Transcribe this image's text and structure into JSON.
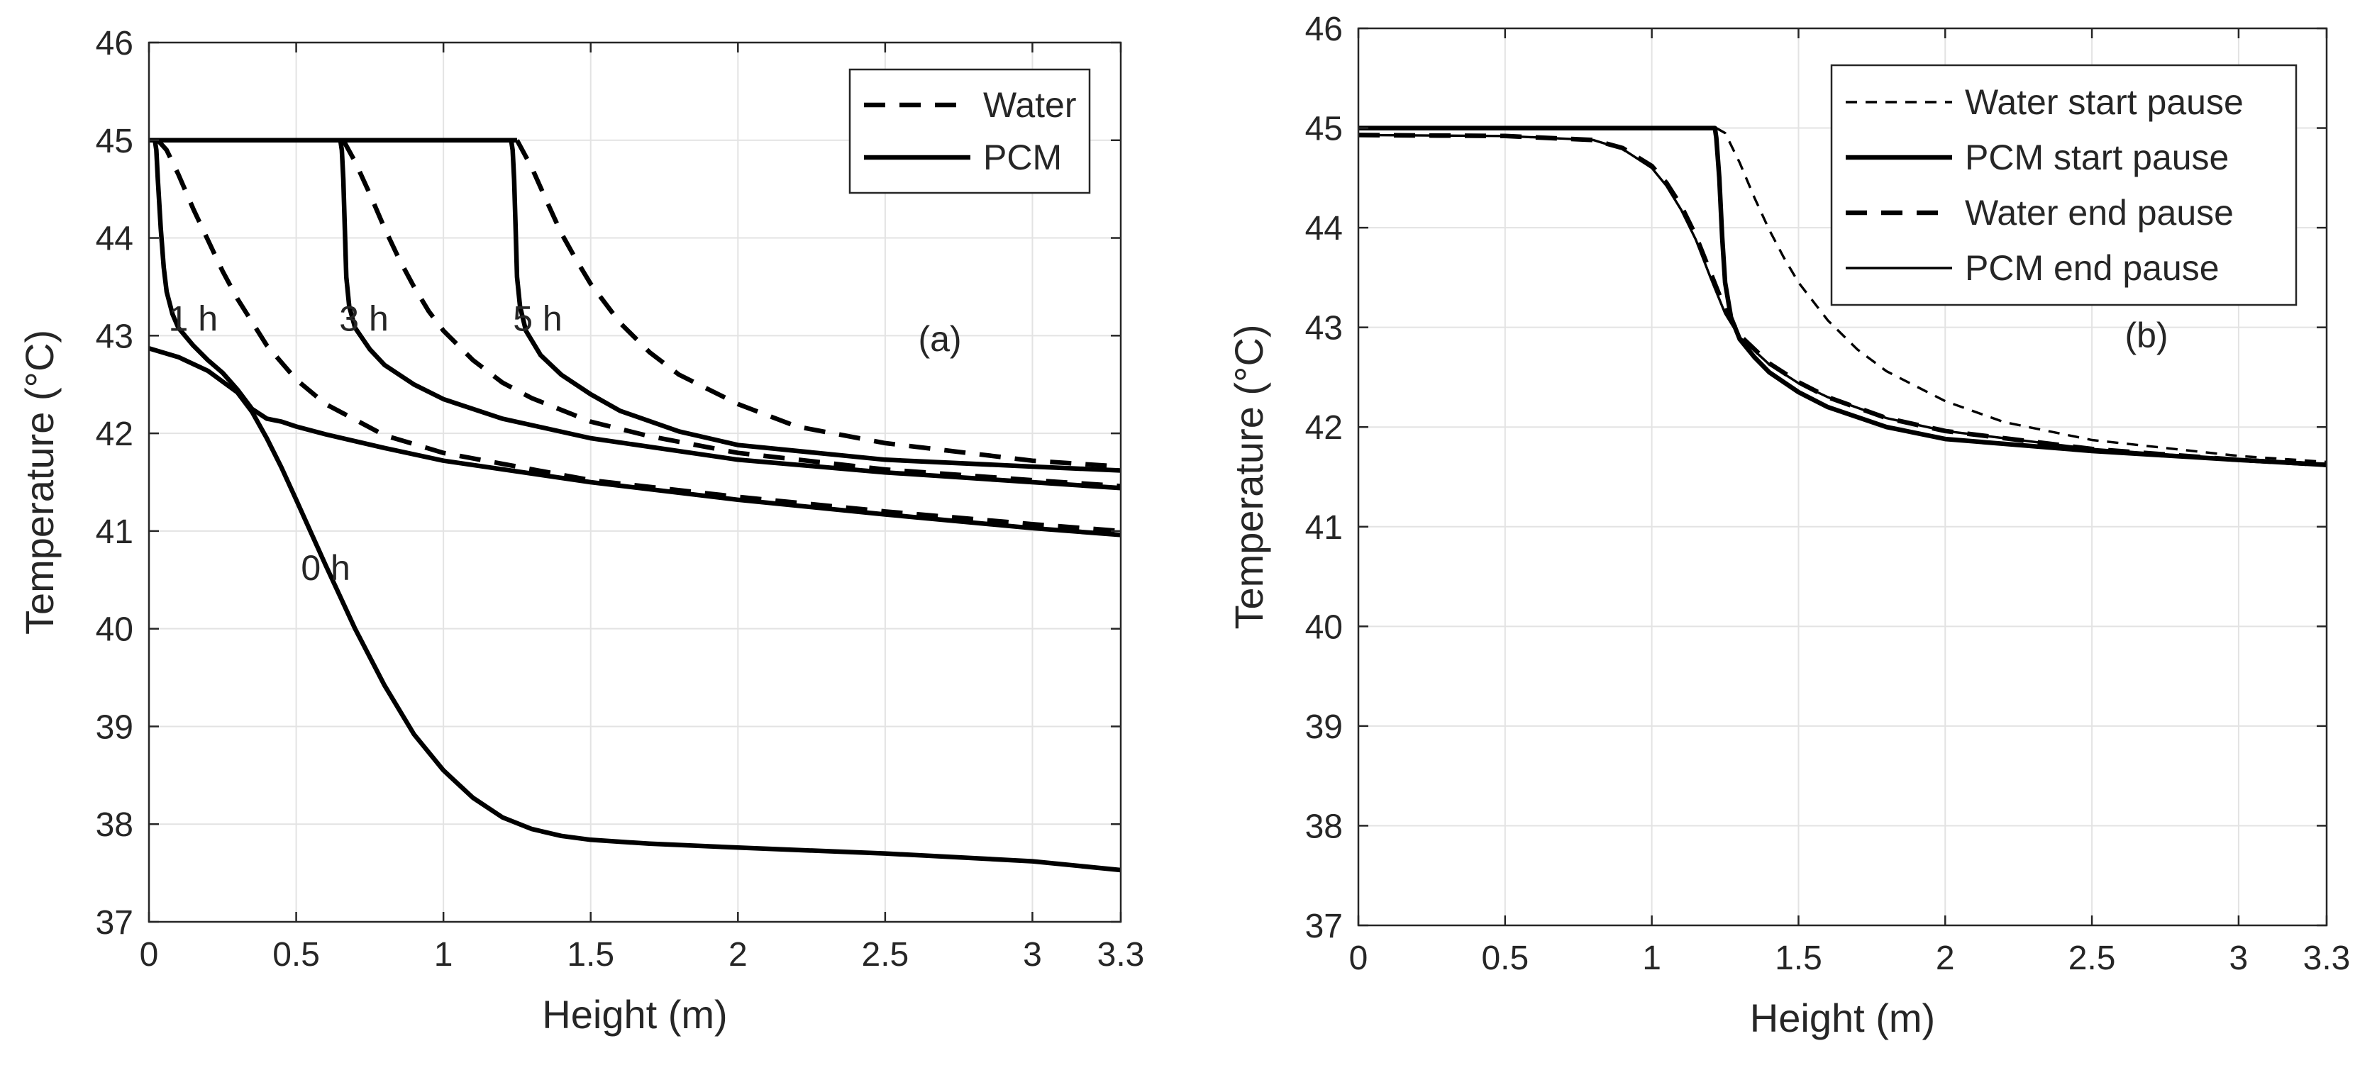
{
  "chart_data": [
    {
      "id": "a",
      "type": "line",
      "panel_label": "(a)",
      "xlabel": "Height (m)",
      "ylabel": "Temperature (°C)",
      "xlim": [
        0,
        3.3
      ],
      "ylim": [
        37,
        46
      ],
      "xticks": [
        0,
        0.5,
        1,
        1.5,
        2,
        2.5,
        3,
        3.3
      ],
      "xtick_labels": [
        "0",
        "0.5",
        "1",
        "1.5",
        "2",
        "2.5",
        "3",
        "3.3"
      ],
      "yticks": [
        37,
        38,
        39,
        40,
        41,
        42,
        43,
        44,
        45,
        46
      ],
      "ytick_labels": [
        "37",
        "38",
        "39",
        "40",
        "41",
        "42",
        "43",
        "44",
        "45",
        "46"
      ],
      "grid": true,
      "legend_position": "top-right",
      "legend": [
        {
          "label": "Water",
          "style": "dashed",
          "weight": "thick"
        },
        {
          "label": "PCM",
          "style": "solid",
          "weight": "thick"
        }
      ],
      "annotations": [
        {
          "text": "0 h",
          "x": 0.6,
          "y": 40.5
        },
        {
          "text": "1 h",
          "x": 0.15,
          "y": 43.05
        },
        {
          "text": "3 h",
          "x": 0.73,
          "y": 43.05
        },
        {
          "text": "5 h",
          "x": 1.32,
          "y": 43.05
        }
      ],
      "series": [
        {
          "name": "PCM 0 h",
          "style": "solid",
          "weight": "thick",
          "x": [
            0,
            0.1,
            0.2,
            0.3,
            0.35,
            0.4,
            0.45,
            0.5,
            0.6,
            0.7,
            0.8,
            0.9,
            1.0,
            1.1,
            1.2,
            1.3,
            1.4,
            1.5,
            1.7,
            2.0,
            2.5,
            3.0,
            3.3
          ],
          "y": [
            42.87,
            42.78,
            42.64,
            42.42,
            42.22,
            41.95,
            41.65,
            41.32,
            40.65,
            40.0,
            39.42,
            38.92,
            38.55,
            38.27,
            38.07,
            37.95,
            37.88,
            37.84,
            37.8,
            37.76,
            37.7,
            37.62,
            37.53
          ]
        },
        {
          "name": "Water 1 h",
          "style": "dashed",
          "weight": "thick",
          "x": [
            0.03,
            0.06,
            0.1,
            0.15,
            0.2,
            0.25,
            0.3,
            0.4,
            0.5,
            0.6,
            0.8,
            1.0,
            1.5,
            2.0,
            2.5,
            3.0,
            3.3
          ],
          "y": [
            45.0,
            44.9,
            44.65,
            44.3,
            43.98,
            43.66,
            43.38,
            42.9,
            42.55,
            42.3,
            41.98,
            41.8,
            41.52,
            41.35,
            41.2,
            41.07,
            41.0
          ]
        },
        {
          "name": "PCM 1 h",
          "style": "solid",
          "weight": "thick",
          "x": [
            0.02,
            0.025,
            0.03,
            0.04,
            0.05,
            0.06,
            0.08,
            0.1,
            0.15,
            0.2,
            0.25,
            0.3,
            0.35,
            0.4,
            0.45,
            0.5,
            0.6,
            0.8,
            1.0,
            1.5,
            2.0,
            2.5,
            3.0,
            3.3
          ],
          "y": [
            45.0,
            44.9,
            44.6,
            44.1,
            43.7,
            43.45,
            43.22,
            43.08,
            42.9,
            42.75,
            42.62,
            42.45,
            42.25,
            42.15,
            42.12,
            42.07,
            41.99,
            41.85,
            41.72,
            41.5,
            41.32,
            41.17,
            41.03,
            40.96
          ]
        },
        {
          "name": "Water 3 h",
          "style": "dashed",
          "weight": "thick",
          "x": [
            0.66,
            0.7,
            0.75,
            0.8,
            0.85,
            0.9,
            0.95,
            1.0,
            1.1,
            1.2,
            1.3,
            1.5,
            1.7,
            2.0,
            2.5,
            3.0,
            3.3
          ],
          "y": [
            45.0,
            44.78,
            44.45,
            44.1,
            43.78,
            43.5,
            43.25,
            43.05,
            42.75,
            42.52,
            42.36,
            42.12,
            41.97,
            41.8,
            41.63,
            41.52,
            41.46
          ]
        },
        {
          "name": "PCM 3 h",
          "style": "solid",
          "weight": "thick",
          "x": [
            0.65,
            0.655,
            0.66,
            0.665,
            0.67,
            0.68,
            0.7,
            0.75,
            0.8,
            0.9,
            1.0,
            1.2,
            1.5,
            2.0,
            2.5,
            3.0,
            3.3
          ],
          "y": [
            45.0,
            44.9,
            44.6,
            44.1,
            43.6,
            43.3,
            43.08,
            42.86,
            42.7,
            42.5,
            42.35,
            42.15,
            41.95,
            41.73,
            41.6,
            41.5,
            41.44
          ]
        },
        {
          "name": "Water 5 h",
          "style": "dashed",
          "weight": "thick",
          "x": [
            1.25,
            1.3,
            1.35,
            1.4,
            1.45,
            1.5,
            1.6,
            1.7,
            1.8,
            2.0,
            2.2,
            2.5,
            3.0,
            3.3
          ],
          "y": [
            45.0,
            44.72,
            44.38,
            44.05,
            43.78,
            43.53,
            43.13,
            42.83,
            42.6,
            42.3,
            42.07,
            41.9,
            41.72,
            41.66
          ]
        },
        {
          "name": "PCM 5 h",
          "style": "solid",
          "weight": "thick",
          "x": [
            1.23,
            1.235,
            1.24,
            1.245,
            1.25,
            1.26,
            1.28,
            1.33,
            1.4,
            1.5,
            1.6,
            1.8,
            2.0,
            2.5,
            3.0,
            3.3
          ],
          "y": [
            45.0,
            44.9,
            44.6,
            44.1,
            43.6,
            43.3,
            43.05,
            42.8,
            42.6,
            42.4,
            42.23,
            42.02,
            41.88,
            41.73,
            41.66,
            41.62
          ]
        },
        {
          "name": "Water/PCM 45 °C plateau",
          "style": "solid",
          "weight": "thick",
          "x": [
            0,
            1.25
          ],
          "y": [
            45.0,
            45.0
          ]
        }
      ]
    },
    {
      "id": "b",
      "type": "line",
      "panel_label": "(b)",
      "xlabel": "Height (m)",
      "ylabel": "Temperature (°C)",
      "xlim": [
        0,
        3.3
      ],
      "ylim": [
        37,
        46
      ],
      "xticks": [
        0,
        0.5,
        1,
        1.5,
        2,
        2.5,
        3,
        3.3
      ],
      "xtick_labels": [
        "0",
        "0.5",
        "1",
        "1.5",
        "2",
        "2.5",
        "3",
        "3.3"
      ],
      "yticks": [
        37,
        38,
        39,
        40,
        41,
        42,
        43,
        44,
        45,
        46
      ],
      "ytick_labels": [
        "37",
        "38",
        "39",
        "40",
        "41",
        "42",
        "43",
        "44",
        "45",
        "46"
      ],
      "grid": true,
      "legend_position": "top-right",
      "legend": [
        {
          "label": "Water start pause",
          "style": "dashed",
          "weight": "thin"
        },
        {
          "label": "PCM start pause",
          "style": "solid",
          "weight": "thick"
        },
        {
          "label": "Water end pause",
          "style": "dashed",
          "weight": "thick"
        },
        {
          "label": "PCM end pause",
          "style": "solid",
          "weight": "thin"
        }
      ],
      "annotations": [],
      "series": [
        {
          "name": "Water start pause",
          "style": "dashed",
          "weight": "thin",
          "x": [
            0,
            1.22,
            1.25,
            1.3,
            1.35,
            1.4,
            1.45,
            1.5,
            1.6,
            1.7,
            1.8,
            2.0,
            2.2,
            2.5,
            3.0,
            3.3
          ],
          "y": [
            45.0,
            45.0,
            44.95,
            44.65,
            44.3,
            43.98,
            43.7,
            43.45,
            43.07,
            42.78,
            42.56,
            42.26,
            42.05,
            41.87,
            41.71,
            41.65
          ]
        },
        {
          "name": "PCM start pause",
          "style": "solid",
          "weight": "thick",
          "x": [
            0,
            1.215,
            1.22,
            1.23,
            1.24,
            1.25,
            1.27,
            1.3,
            1.35,
            1.4,
            1.5,
            1.6,
            1.8,
            2.0,
            2.5,
            3.0,
            3.3
          ],
          "y": [
            45.0,
            45.0,
            44.9,
            44.5,
            43.9,
            43.45,
            43.1,
            42.88,
            42.7,
            42.55,
            42.35,
            42.2,
            42.0,
            41.88,
            41.76,
            41.67,
            41.62
          ]
        },
        {
          "name": "Water end pause",
          "style": "dashed",
          "weight": "thick",
          "x": [
            0,
            0.5,
            0.8,
            0.9,
            1.0,
            1.05,
            1.1,
            1.15,
            1.2,
            1.25,
            1.3,
            1.4,
            1.5,
            1.6,
            1.8,
            2.0,
            2.5,
            3.0,
            3.3
          ],
          "y": [
            44.93,
            44.92,
            44.88,
            44.8,
            44.62,
            44.45,
            44.22,
            43.92,
            43.55,
            43.18,
            42.92,
            42.64,
            42.45,
            42.3,
            42.09,
            41.96,
            41.78,
            41.67,
            41.62
          ]
        },
        {
          "name": "PCM end pause",
          "style": "solid",
          "weight": "thin",
          "x": [
            0,
            0.5,
            0.8,
            0.9,
            1.0,
            1.05,
            1.1,
            1.15,
            1.2,
            1.25,
            1.3,
            1.4,
            1.5,
            1.6,
            1.8,
            2.0,
            2.5,
            3.0,
            3.3
          ],
          "y": [
            44.93,
            44.92,
            44.88,
            44.79,
            44.6,
            44.42,
            44.18,
            43.88,
            43.5,
            43.14,
            42.9,
            42.63,
            42.44,
            42.3,
            42.09,
            41.96,
            41.78,
            41.67,
            41.62
          ]
        }
      ]
    }
  ]
}
